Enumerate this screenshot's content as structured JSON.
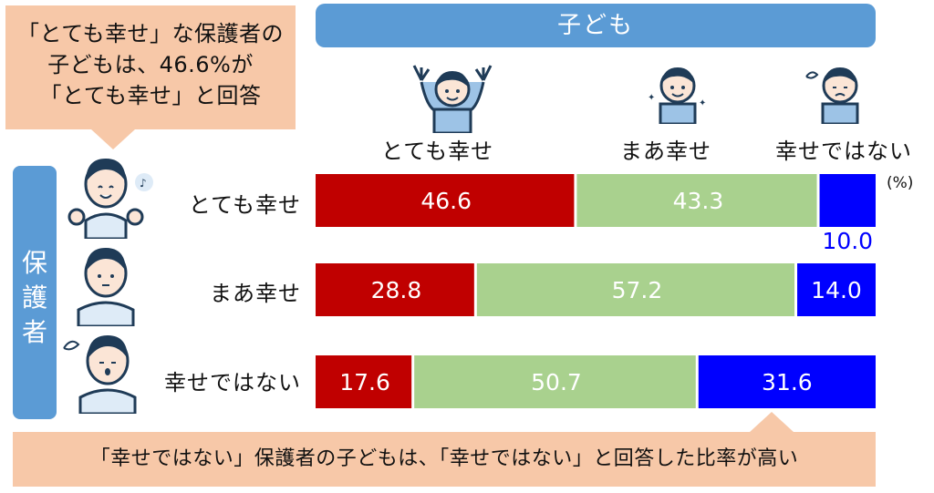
{
  "callout_top": {
    "text": "「とても幸せ」な保護者の\n子どもは、46.6%が\n「とても幸せ」と回答"
  },
  "child_header": "子ども",
  "guardian_label": "保\n護\n者",
  "unit_label": "(%)",
  "callout_bottom": {
    "text": "「幸せではない」保護者の子どもは、「幸せではない」と回答した比率が高い"
  },
  "colors": {
    "very_happy": "#c00000",
    "somewhat_happy": "#a9d18e",
    "not_happy": "#0000ff",
    "header": "#5b9bd5",
    "callout": "#f7c8a8"
  },
  "icons": [
    "child-cheering-icon",
    "child-smiling-icon",
    "child-worried-icon",
    "parent-cheering-icon",
    "parent-neutral-icon",
    "parent-worried-icon"
  ],
  "chart_data": {
    "type": "bar",
    "orientation": "horizontal-stacked-100",
    "categories": [
      "とても幸せ",
      "まあ幸せ",
      "幸せではない"
    ],
    "series": [
      {
        "name": "とても幸せ",
        "values": [
          46.6,
          28.8,
          17.6
        ],
        "color": "#c00000"
      },
      {
        "name": "まあ幸せ",
        "values": [
          43.3,
          57.2,
          50.7
        ],
        "color": "#a9d18e"
      },
      {
        "name": "幸せではない",
        "values": [
          10.0,
          14.0,
          31.6
        ],
        "color": "#0000ff"
      }
    ],
    "value_labels": [
      [
        "46.6",
        "43.3",
        "10.0"
      ],
      [
        "28.8",
        "57.2",
        "14.0"
      ],
      [
        "17.6",
        "50.7",
        "31.6"
      ]
    ],
    "unit": "%"
  }
}
